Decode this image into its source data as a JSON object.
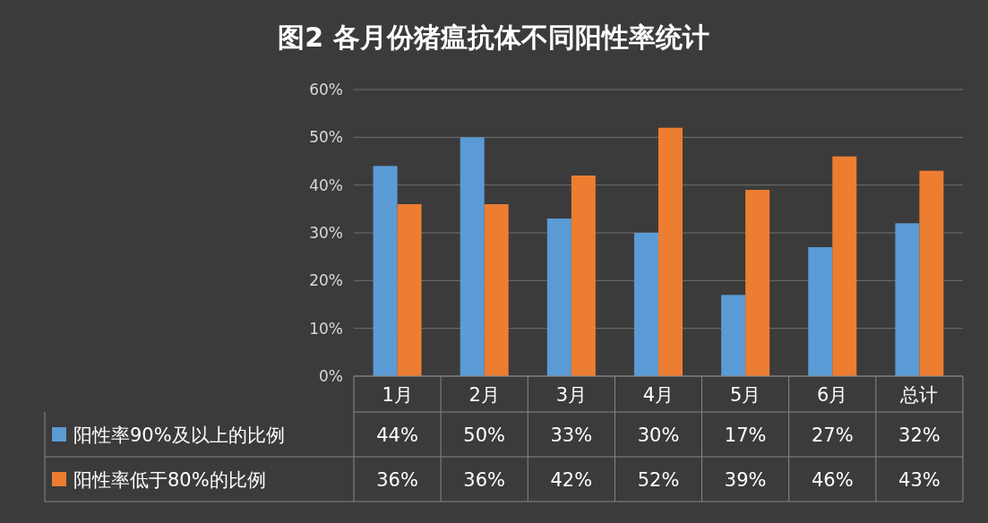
{
  "chart_data": {
    "type": "bar",
    "title": "图2 各月份猪瘟抗体不同阳性率统计",
    "categories": [
      "1月",
      "2月",
      "3月",
      "4月",
      "5月",
      "6月",
      "总计"
    ],
    "series": [
      {
        "name": "阳性率90%及以上的比例",
        "color": "#5b9bd5",
        "values": [
          44,
          50,
          33,
          30,
          17,
          27,
          32
        ],
        "value_labels": [
          "44%",
          "50%",
          "33%",
          "30%",
          "17%",
          "27%",
          "32%"
        ]
      },
      {
        "name": "阳性率低于80%的比例",
        "color": "#ed7d31",
        "values": [
          36,
          36,
          42,
          52,
          39,
          46,
          43
        ],
        "value_labels": [
          "36%",
          "36%",
          "42%",
          "52%",
          "39%",
          "46%",
          "43%"
        ]
      }
    ],
    "ylim": [
      0,
      60
    ],
    "yticks": [
      {
        "value": 0,
        "label": "0%"
      },
      {
        "value": 10,
        "label": "10%"
      },
      {
        "value": 20,
        "label": "20%"
      },
      {
        "value": 30,
        "label": "30%"
      },
      {
        "value": 40,
        "label": "40%"
      },
      {
        "value": 50,
        "label": "50%"
      },
      {
        "value": 60,
        "label": "60%"
      }
    ],
    "grid": "y",
    "legend": "bottom"
  }
}
